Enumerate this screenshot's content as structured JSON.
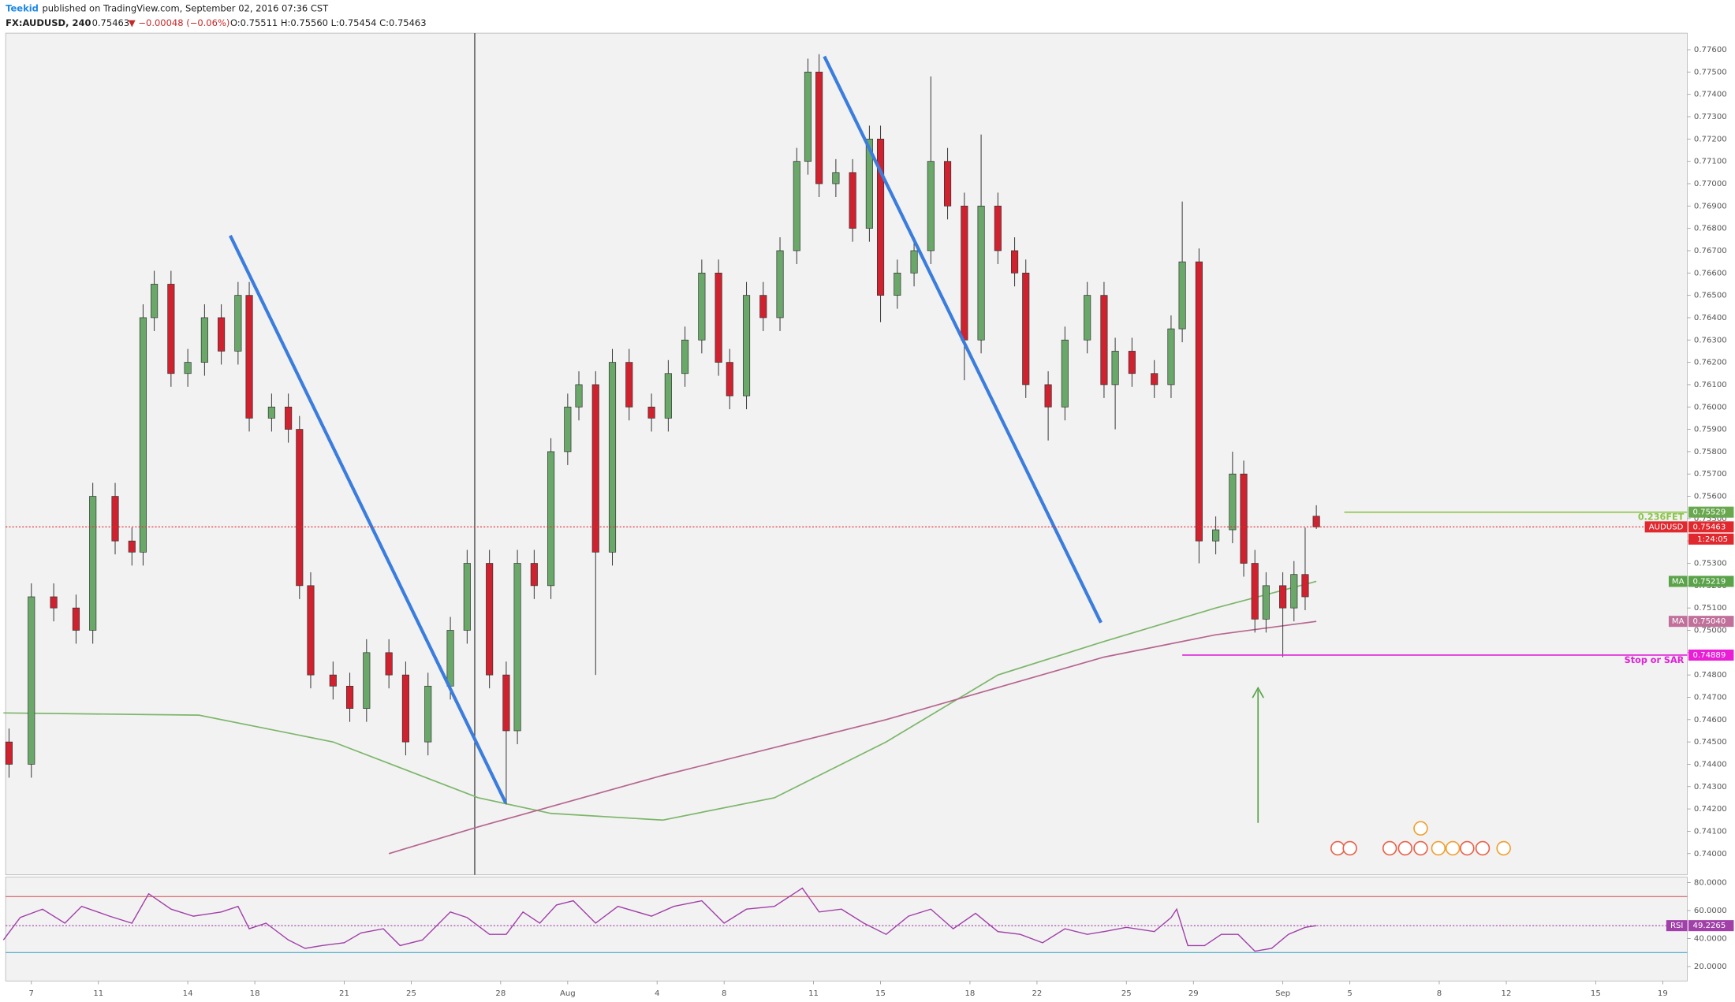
{
  "header": {
    "author": "Teekid",
    "published": "published on TradingView.com, September 02, 2016 07:36 CST",
    "symbol": "FX:AUDUSD, 240",
    "last": "0.75463",
    "change": "▼ −0.00048 (−0.06%)",
    "ohlc": "O:0.75511 H:0.75560 L:0.75454 C:0.75463"
  },
  "chart_data": {
    "type": "candlestick",
    "up_color": "#6aa86a",
    "down_color": "#d0212f",
    "xlim": [
      -0.6,
      300.4
    ],
    "xticks": [
      {
        "value": 4,
        "label": "7"
      },
      {
        "value": 16,
        "label": "11"
      },
      {
        "value": 32,
        "label": "14"
      },
      {
        "value": 44,
        "label": "18"
      },
      {
        "value": 60,
        "label": "21"
      },
      {
        "value": 72,
        "label": "25"
      },
      {
        "value": 88,
        "label": "28"
      },
      {
        "value": 100,
        "label": "Aug"
      },
      {
        "value": 116,
        "label": "4"
      },
      {
        "value": 128,
        "label": "8"
      },
      {
        "value": 144,
        "label": "11"
      },
      {
        "value": 156,
        "label": "15"
      },
      {
        "value": 172,
        "label": "18"
      },
      {
        "value": 184,
        "label": "22"
      },
      {
        "value": 200,
        "label": "25"
      },
      {
        "value": 212,
        "label": "29"
      },
      {
        "value": 228,
        "label": "Sep"
      },
      {
        "value": 240,
        "label": "5"
      },
      {
        "value": 256,
        "label": "8"
      },
      {
        "value": 268,
        "label": "12"
      },
      {
        "value": 284,
        "label": "15"
      },
      {
        "value": 296,
        "label": "19"
      }
    ],
    "ylim": [
      0.73905,
      0.77674
    ],
    "yticks": [
      {
        "value": 0.74,
        "label": "0.74000"
      },
      {
        "value": 0.741,
        "label": "0.74100"
      },
      {
        "value": 0.742,
        "label": "0.74200"
      },
      {
        "value": 0.743,
        "label": "0.74300"
      },
      {
        "value": 0.744,
        "label": "0.74400"
      },
      {
        "value": 0.745,
        "label": "0.74500"
      },
      {
        "value": 0.746,
        "label": "0.74600"
      },
      {
        "value": 0.747,
        "label": "0.74700"
      },
      {
        "value": 0.748,
        "label": "0.74800"
      },
      {
        "value": 0.749,
        "label": "0.74900"
      },
      {
        "value": 0.75,
        "label": "0.75000"
      },
      {
        "value": 0.751,
        "label": "0.75100"
      },
      {
        "value": 0.752,
        "label": "0.75200"
      },
      {
        "value": 0.753,
        "label": "0.75300"
      },
      {
        "value": 0.754,
        "label": "0.75400"
      },
      {
        "value": 0.755,
        "label": "0.75500"
      },
      {
        "value": 0.756,
        "label": "0.75600"
      },
      {
        "value": 0.757,
        "label": "0.75700"
      },
      {
        "value": 0.758,
        "label": "0.75800"
      },
      {
        "value": 0.759,
        "label": "0.75900"
      },
      {
        "value": 0.76,
        "label": "0.76000"
      },
      {
        "value": 0.761,
        "label": "0.76100"
      },
      {
        "value": 0.762,
        "label": "0.76200"
      },
      {
        "value": 0.763,
        "label": "0.76300"
      },
      {
        "value": 0.764,
        "label": "0.76400"
      },
      {
        "value": 0.765,
        "label": "0.76500"
      },
      {
        "value": 0.766,
        "label": "0.76600"
      },
      {
        "value": 0.767,
        "label": "0.76700"
      },
      {
        "value": 0.768,
        "label": "0.76800"
      },
      {
        "value": 0.769,
        "label": "0.76900"
      },
      {
        "value": 0.77,
        "label": "0.77000"
      },
      {
        "value": 0.771,
        "label": "0.77100"
      },
      {
        "value": 0.772,
        "label": "0.77200"
      },
      {
        "value": 0.773,
        "label": "0.77300"
      },
      {
        "value": 0.774,
        "label": "0.77400"
      },
      {
        "value": 0.775,
        "label": "0.77500"
      },
      {
        "value": 0.776,
        "label": "0.77600"
      }
    ],
    "x": [
      0,
      4,
      8,
      12,
      15,
      19,
      22,
      24,
      26,
      29,
      32,
      35,
      38,
      41,
      43,
      47,
      50,
      52,
      54,
      58,
      61,
      64,
      68,
      71,
      75,
      79,
      82,
      86,
      89,
      91,
      94,
      97,
      100,
      102,
      105,
      108,
      111,
      115,
      118,
      121,
      124,
      127,
      129,
      132,
      135,
      138,
      141,
      143,
      145,
      148,
      151,
      154,
      156,
      159,
      162,
      165,
      168,
      171,
      174,
      177,
      180,
      182,
      186,
      189,
      193,
      196,
      198,
      201,
      205,
      208,
      210,
      213,
      216,
      219,
      221,
      223,
      225,
      228,
      230,
      232,
      234
    ],
    "candles": [
      [
        0.745,
        0.7456,
        0.7434,
        0.744
      ],
      [
        0.744,
        0.7521,
        0.7434,
        0.7515
      ],
      [
        0.7515,
        0.7521,
        0.7504,
        0.751
      ],
      [
        0.751,
        0.7516,
        0.7494,
        0.75
      ],
      [
        0.75,
        0.7566,
        0.7494,
        0.756
      ],
      [
        0.756,
        0.7566,
        0.7534,
        0.754
      ],
      [
        0.754,
        0.7546,
        0.7529,
        0.7535
      ],
      [
        0.7535,
        0.7646,
        0.7529,
        0.764
      ],
      [
        0.764,
        0.7661,
        0.7634,
        0.7655
      ],
      [
        0.7655,
        0.7661,
        0.7609,
        0.7615
      ],
      [
        0.7615,
        0.7626,
        0.7609,
        0.762
      ],
      [
        0.762,
        0.7646,
        0.7614,
        0.764
      ],
      [
        0.764,
        0.7646,
        0.7619,
        0.7625
      ],
      [
        0.7625,
        0.7656,
        0.7619,
        0.765
      ],
      [
        0.765,
        0.7656,
        0.7589,
        0.7595
      ],
      [
        0.7595,
        0.7606,
        0.7589,
        0.76
      ],
      [
        0.76,
        0.7606,
        0.7584,
        0.759
      ],
      [
        0.759,
        0.7596,
        0.7514,
        0.752
      ],
      [
        0.752,
        0.7526,
        0.7474,
        0.748
      ],
      [
        0.748,
        0.7486,
        0.7469,
        0.7475
      ],
      [
        0.7475,
        0.7481,
        0.7459,
        0.7465
      ],
      [
        0.7465,
        0.7496,
        0.7459,
        0.749
      ],
      [
        0.749,
        0.7496,
        0.7474,
        0.748
      ],
      [
        0.748,
        0.7486,
        0.7444,
        0.745
      ],
      [
        0.745,
        0.7481,
        0.7444,
        0.7475
      ],
      [
        0.7475,
        0.7506,
        0.7469,
        0.75
      ],
      [
        0.75,
        0.7536,
        0.7494,
        0.753
      ],
      [
        0.753,
        0.7536,
        0.7474,
        0.748
      ],
      [
        0.748,
        0.7486,
        0.7422,
        0.7455
      ],
      [
        0.7455,
        0.7536,
        0.7449,
        0.753
      ],
      [
        0.753,
        0.7536,
        0.7514,
        0.752
      ],
      [
        0.752,
        0.7586,
        0.7514,
        0.758
      ],
      [
        0.758,
        0.7606,
        0.7574,
        0.76
      ],
      [
        0.76,
        0.7616,
        0.7594,
        0.761
      ],
      [
        0.761,
        0.7616,
        0.748,
        0.7535
      ],
      [
        0.7535,
        0.7626,
        0.7529,
        0.762
      ],
      [
        0.762,
        0.7626,
        0.7594,
        0.76
      ],
      [
        0.76,
        0.7606,
        0.7589,
        0.7595
      ],
      [
        0.7595,
        0.7621,
        0.7589,
        0.7615
      ],
      [
        0.7615,
        0.7636,
        0.7609,
        0.763
      ],
      [
        0.763,
        0.7666,
        0.7624,
        0.766
      ],
      [
        0.766,
        0.7666,
        0.7614,
        0.762
      ],
      [
        0.762,
        0.7626,
        0.7599,
        0.7605
      ],
      [
        0.7605,
        0.7656,
        0.7599,
        0.765
      ],
      [
        0.765,
        0.7656,
        0.7634,
        0.764
      ],
      [
        0.764,
        0.7676,
        0.7634,
        0.767
      ],
      [
        0.767,
        0.7716,
        0.7664,
        0.771
      ],
      [
        0.771,
        0.7756,
        0.7704,
        0.775
      ],
      [
        0.775,
        0.7758,
        0.7694,
        0.77
      ],
      [
        0.77,
        0.7711,
        0.7694,
        0.7705
      ],
      [
        0.7705,
        0.7711,
        0.7674,
        0.768
      ],
      [
        0.768,
        0.7726,
        0.7674,
        0.772
      ],
      [
        0.772,
        0.7726,
        0.7638,
        0.765
      ],
      [
        0.765,
        0.7666,
        0.7644,
        0.766
      ],
      [
        0.766,
        0.7676,
        0.7654,
        0.767
      ],
      [
        0.767,
        0.7748,
        0.7664,
        0.771
      ],
      [
        0.771,
        0.7716,
        0.7684,
        0.769
      ],
      [
        0.769,
        0.7696,
        0.7612,
        0.763
      ],
      [
        0.763,
        0.7722,
        0.7624,
        0.769
      ],
      [
        0.769,
        0.7696,
        0.7664,
        0.767
      ],
      [
        0.767,
        0.7676,
        0.7654,
        0.766
      ],
      [
        0.766,
        0.7666,
        0.7604,
        0.761
      ],
      [
        0.761,
        0.7616,
        0.7585,
        0.76
      ],
      [
        0.76,
        0.7636,
        0.7594,
        0.763
      ],
      [
        0.763,
        0.7656,
        0.7624,
        0.765
      ],
      [
        0.765,
        0.7656,
        0.7604,
        0.761
      ],
      [
        0.761,
        0.7631,
        0.759,
        0.7625
      ],
      [
        0.7625,
        0.7631,
        0.7609,
        0.7615
      ],
      [
        0.7615,
        0.7621,
        0.7604,
        0.761
      ],
      [
        0.761,
        0.7641,
        0.7604,
        0.7635
      ],
      [
        0.7635,
        0.7692,
        0.7629,
        0.7665
      ],
      [
        0.7665,
        0.7671,
        0.753,
        0.754
      ],
      [
        0.754,
        0.7551,
        0.7534,
        0.7545
      ],
      [
        0.7545,
        0.758,
        0.7539,
        0.757
      ],
      [
        0.757,
        0.7576,
        0.7524,
        0.753
      ],
      [
        0.753,
        0.7536,
        0.7499,
        0.7505
      ],
      [
        0.7505,
        0.7526,
        0.7499,
        0.752
      ],
      [
        0.752,
        0.7526,
        0.7488,
        0.751
      ],
      [
        0.751,
        0.7531,
        0.7504,
        0.7525
      ],
      [
        0.7525,
        0.7546,
        0.7509,
        0.7515
      ],
      [
        0.75511,
        0.7556,
        0.75454,
        0.75463
      ]
    ],
    "series": [
      {
        "color": "#7cb66a",
        "x": [
          -1,
          34,
          58,
          84,
          97,
          117,
          137,
          157,
          177,
          196,
          216,
          234
        ],
        "values": [
          0.7463,
          0.7462,
          0.745,
          0.7425,
          0.7418,
          0.7415,
          0.7425,
          0.745,
          0.748,
          0.7495,
          0.751,
          0.75219
        ]
      },
      {
        "color": "#b5658f",
        "x": [
          68,
          84,
          117,
          157,
          196,
          216,
          234
        ],
        "values": [
          0.74,
          0.7412,
          0.7435,
          0.746,
          0.7488,
          0.7498,
          0.7504
        ]
      }
    ],
    "levels": [
      {
        "label": "0.236FET",
        "value": 0.75529,
        "color": "#8bc34a"
      },
      {
        "label": "Stop or SAR",
        "value": 0.74889,
        "color": "#e020d8"
      }
    ],
    "markers": [
      {
        "label": "0.75529",
        "value": 0.75529,
        "color": "#6aa84f"
      },
      {
        "name": "AUDUSD",
        "label": "0.75463",
        "value": 0.75463,
        "color": "#e0282e",
        "countdown": "1:24:05",
        "line": "dotted"
      },
      {
        "name": "MA",
        "label": "0.75219",
        "value": 0.75219,
        "color": "#5aa34a"
      },
      {
        "name": "MA",
        "label": "0.75040",
        "value": 0.7504,
        "color": "#c0709a"
      },
      {
        "label": "0.74889",
        "value": 0.74889,
        "color": "#e91ed6"
      }
    ],
    "rsi": {
      "name": "RSI",
      "color": "#a040a8",
      "last": 49.2265,
      "ylim": [
        9.7,
        83.95
      ],
      "yticks": [
        {
          "value": 80,
          "label": "80.0000"
        },
        {
          "value": 60,
          "label": "60.0000"
        },
        {
          "value": 40,
          "label": "40.0000"
        },
        {
          "value": 20,
          "label": "20.0000"
        }
      ],
      "bands": [
        {
          "value": 70,
          "color": "#d04848"
        },
        {
          "value": 30,
          "color": "#40a8c8"
        }
      ],
      "x": [
        -1,
        2,
        6,
        10,
        13,
        18,
        22,
        25,
        29,
        33,
        38,
        41,
        43,
        46,
        50,
        53,
        56,
        60,
        63,
        67,
        70,
        74,
        79,
        82,
        86,
        89,
        92,
        95,
        98,
        101,
        105,
        109,
        115,
        119,
        124,
        128,
        132,
        137,
        142,
        145,
        149,
        153,
        157,
        161,
        165,
        169,
        173,
        177,
        181,
        185,
        189,
        193,
        196,
        200,
        205,
        208,
        209,
        211,
        214,
        217,
        220,
        223,
        226,
        229,
        232,
        234
      ],
      "values": [
        39,
        55,
        61,
        51,
        63,
        56,
        51,
        72,
        61,
        56,
        59,
        63,
        47,
        51,
        39,
        33,
        35,
        37,
        44,
        47,
        35,
        39,
        59,
        55,
        43,
        43,
        59,
        51,
        64,
        67,
        51,
        63,
        56,
        63,
        67,
        51,
        61,
        63,
        76,
        59,
        61,
        51,
        43,
        56,
        61,
        47,
        58,
        45,
        43,
        37,
        47,
        43,
        45,
        48,
        45,
        55,
        61,
        35,
        35,
        43,
        43,
        31,
        33,
        43,
        48,
        49.2265
      ]
    }
  }
}
